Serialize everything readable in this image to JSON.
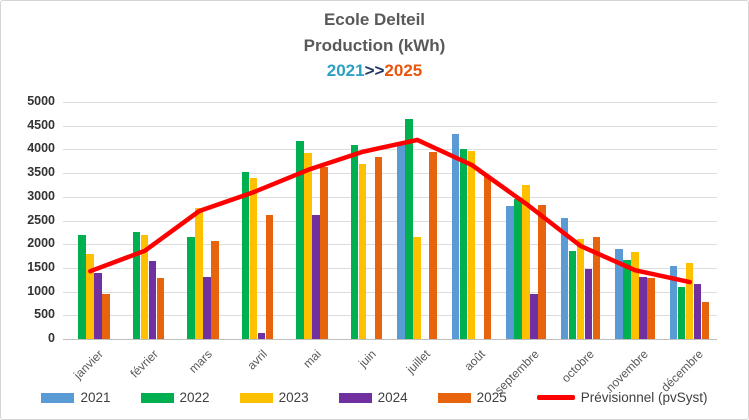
{
  "title": {
    "line1": "Ecole Delteil",
    "line2": "Production (kWh)",
    "range_start": "2021",
    "range_sep": ">>",
    "range_end": "2025"
  },
  "colors": {
    "title_gray": "#595959",
    "range_start_teal": "#2BA0C4",
    "range_sep_navy": "#1F3864",
    "range_end_orange": "#E8550C",
    "gridline": "#DCDCDC",
    "axis_line": "#BFBFBF",
    "y_label": "#333333",
    "x_label": "#595959",
    "legend_text": "#404040"
  },
  "chart_data": {
    "type": "bar",
    "title": "Ecole Delteil Production (kWh) 2021>>2025",
    "categories": [
      "janvier",
      "février",
      "mars",
      "avril",
      "mai",
      "juin",
      "juillet",
      "août",
      "septembre",
      "octobre",
      "novembre",
      "décembre"
    ],
    "series": [
      {
        "name": "2021",
        "type": "bar",
        "color": "#5B9BD5",
        "values": [
          null,
          null,
          null,
          null,
          null,
          null,
          4100,
          4330,
          2800,
          2550,
          1900,
          1540
        ]
      },
      {
        "name": "2022",
        "type": "bar",
        "color": "#00B050",
        "values": [
          2200,
          2250,
          2150,
          3530,
          4180,
          4100,
          4650,
          4000,
          2950,
          1860,
          1670,
          1100
        ]
      },
      {
        "name": "2023",
        "type": "bar",
        "color": "#FFC000",
        "values": [
          1800,
          2200,
          2770,
          3400,
          3930,
          3700,
          2150,
          3960,
          3250,
          2120,
          1830,
          1600
        ]
      },
      {
        "name": "2024",
        "type": "bar",
        "color": "#7030A0",
        "values": [
          1400,
          1650,
          1300,
          130,
          2620,
          null,
          null,
          null,
          960,
          1470,
          1300,
          1170
        ]
      },
      {
        "name": "2025",
        "type": "bar",
        "color": "#E8640C",
        "values": [
          950,
          1280,
          2070,
          2620,
          3620,
          3830,
          3950,
          3430,
          2830,
          2150,
          1280,
          780
        ]
      },
      {
        "name": "Prévisionnel (pvSyst)",
        "type": "line",
        "color": "#FE0000",
        "values": [
          1430,
          1860,
          2700,
          3100,
          3570,
          3950,
          4200,
          3670,
          2850,
          1960,
          1450,
          1200
        ]
      }
    ],
    "xlabel": "",
    "ylabel": "",
    "ylim": [
      0,
      5000
    ],
    "ytick_step": 500,
    "ytick_labels": [
      "0",
      "500",
      "1000",
      "1500",
      "2000",
      "2500",
      "3000",
      "3500",
      "4000",
      "4500",
      "5000"
    ],
    "grid": true,
    "legend_position": "bottom"
  }
}
